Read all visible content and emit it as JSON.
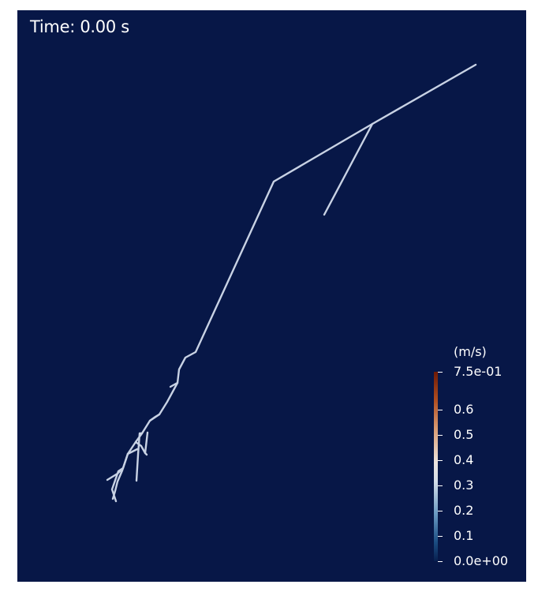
{
  "time_label": "Time: 0.00 s",
  "colors": {
    "background": "#071747",
    "vessel_line": "#c8d2e4",
    "text": "#ffffff"
  },
  "colorbar": {
    "title": "(m/s)",
    "max_label": "7.5e-01",
    "min_label": "0.0e+00",
    "ticks": [
      "0.6",
      "0.5",
      "0.4",
      "0.3",
      "0.2",
      "0.1"
    ],
    "range": [
      0,
      0.75
    ],
    "colormap": "blue-white-red diverging"
  }
}
